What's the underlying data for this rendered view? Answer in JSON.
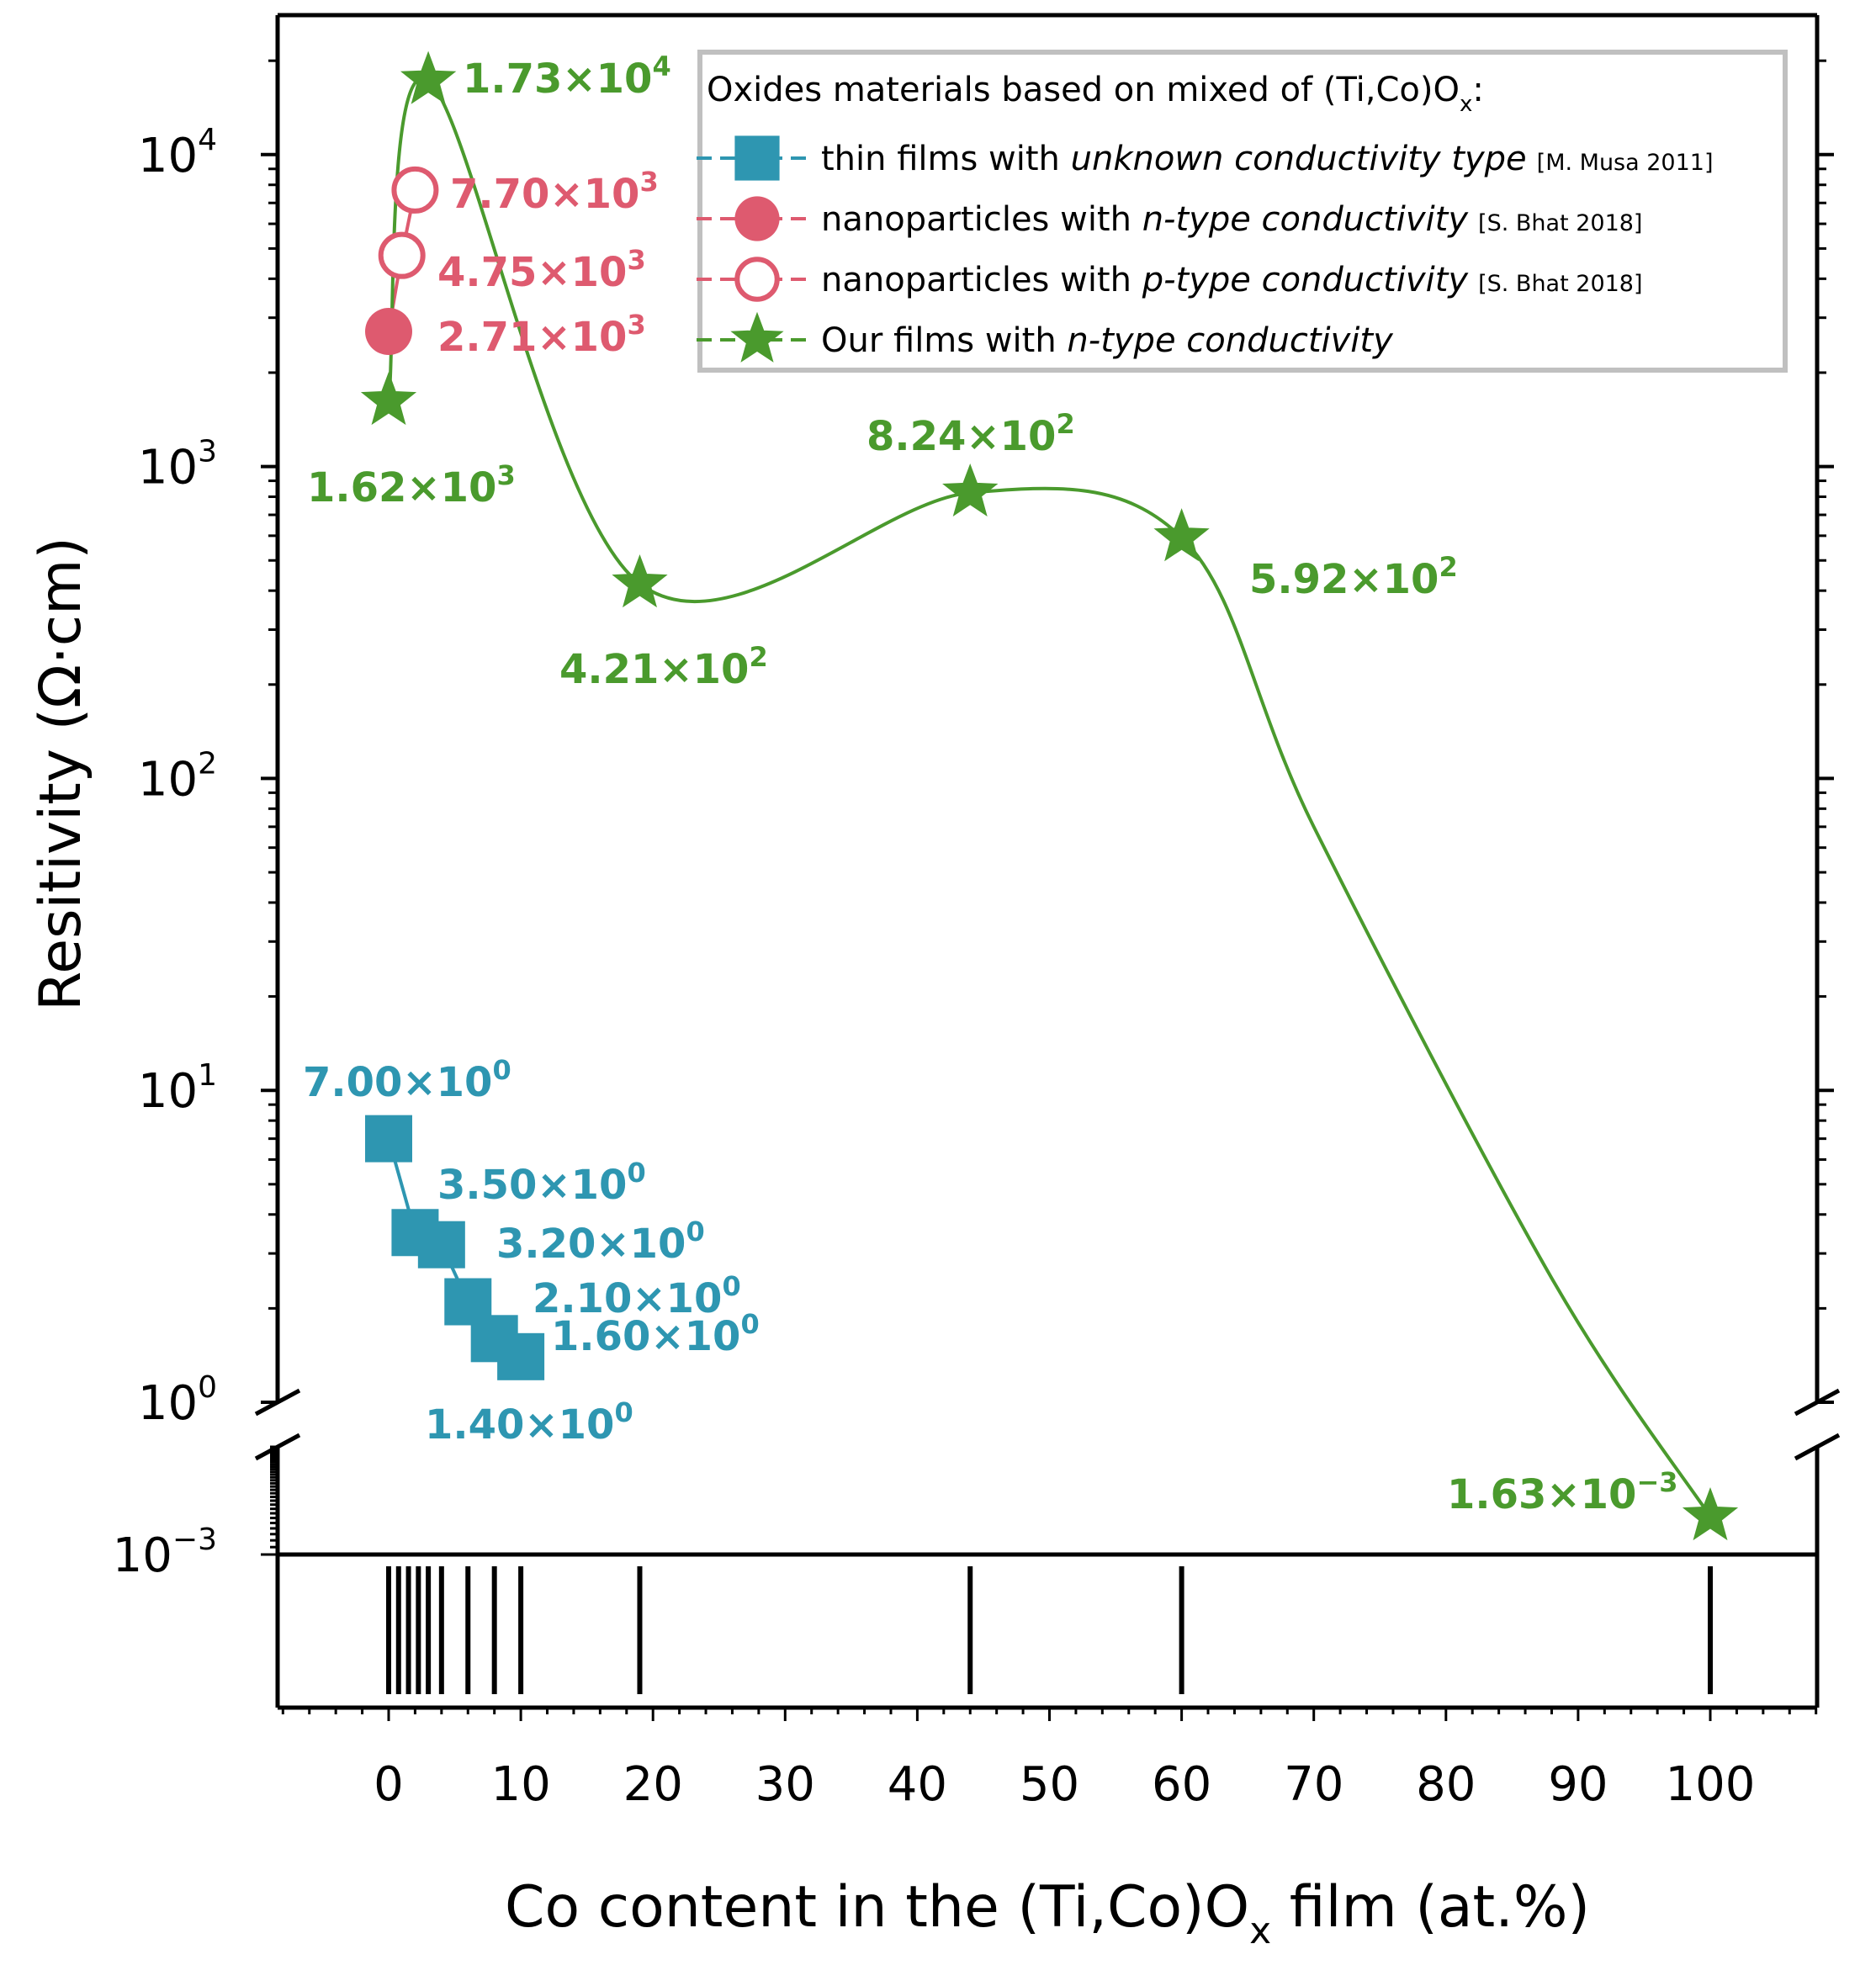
{
  "chart_data": {
    "type": "scatter",
    "xlabel": "Co content in the (Ti,Co)O",
    "xlabel_sub": "x",
    "xlabel_tail": " film (at.%)",
    "ylabel": "Resitivity (Ω·cm)",
    "x_ticks": [
      "0",
      "10",
      "20",
      "30",
      "40",
      "50",
      "60",
      "70",
      "80",
      "90",
      "100"
    ],
    "y_ticks": [
      {
        "base": "10",
        "exp": "4"
      },
      {
        "base": "10",
        "exp": "3"
      },
      {
        "base": "10",
        "exp": "2"
      },
      {
        "base": "10",
        "exp": "1"
      },
      {
        "base": "10",
        "exp": "0"
      },
      {
        "base": "10",
        "exp": "−3"
      }
    ],
    "xlim": [
      -8.5,
      108
    ],
    "ylim_upper": [
      1,
      28000
    ],
    "ylim_lower": [
      0.001,
      0.004
    ],
    "y_scale": "log, broken axis",
    "rug_x": [
      0,
      0.75,
      1.5,
      2.25,
      3,
      4,
      6,
      8,
      10,
      19,
      44,
      60,
      100
    ],
    "legend": {
      "title_main": "Oxides materials based on mixed of (Ti,Co)O",
      "title_sub": "x",
      "title_tail": ":",
      "position": "top-right"
    },
    "series": [
      {
        "name": "thin films with unknown conductivity type",
        "legend_plain": "thin films with ",
        "legend_italic": "unknown conductivity type",
        "ref": "[M. Musa 2011]",
        "marker": "square",
        "color": "#2e96b1",
        "x": [
          0,
          2,
          4,
          6,
          8,
          10
        ],
        "y": [
          7.0,
          3.5,
          3.2,
          2.1,
          1.6,
          1.4
        ],
        "labels": [
          {
            "mant": "7.00×10",
            "exp": "0"
          },
          {
            "mant": "3.50×10",
            "exp": "0"
          },
          {
            "mant": "3.20×10",
            "exp": "0"
          },
          {
            "mant": "2.10×10",
            "exp": "0"
          },
          {
            "mant": "1.60×10",
            "exp": "0"
          },
          {
            "mant": "1.40×10",
            "exp": "0"
          }
        ]
      },
      {
        "name": "nanoparticles with n-type conductivity",
        "legend_plain": "nanoparticles with ",
        "legend_italic": "n-type conductivity",
        "ref": "[S. Bhat 2018]",
        "marker": "filled-circle",
        "color": "#de5a6f",
        "x": [
          0
        ],
        "y": [
          2710
        ],
        "labels": [
          {
            "mant": "2.71×10",
            "exp": "3"
          }
        ]
      },
      {
        "name": "nanoparticles with p-type conductivity",
        "legend_plain": "nanoparticles with ",
        "legend_italic": "p-type conductivity",
        "ref": "[S. Bhat 2018]",
        "marker": "open-circle",
        "color": "#de5a6f",
        "x": [
          1,
          2
        ],
        "y": [
          4750,
          7700
        ],
        "labels": [
          {
            "mant": "4.75×10",
            "exp": "3"
          },
          {
            "mant": "7.70×10",
            "exp": "3"
          }
        ]
      },
      {
        "name": "Our films with n-type conductivity",
        "legend_plain": "Our films with ",
        "legend_italic": "n-type conductivity",
        "ref": "",
        "marker": "star",
        "color": "#4a9a2d",
        "x": [
          0,
          3,
          19,
          44,
          60,
          100
        ],
        "y": [
          1620,
          17300,
          421,
          824,
          592,
          0.00163
        ],
        "labels": [
          {
            "mant": "1.62×10",
            "exp": "3"
          },
          {
            "mant": "1.73×10",
            "exp": "4"
          },
          {
            "mant": "4.21×10",
            "exp": "2"
          },
          {
            "mant": "8.24×10",
            "exp": "2"
          },
          {
            "mant": "5.92×10",
            "exp": "2"
          },
          {
            "mant": "1.63×10",
            "exp": "−3"
          }
        ]
      }
    ]
  }
}
